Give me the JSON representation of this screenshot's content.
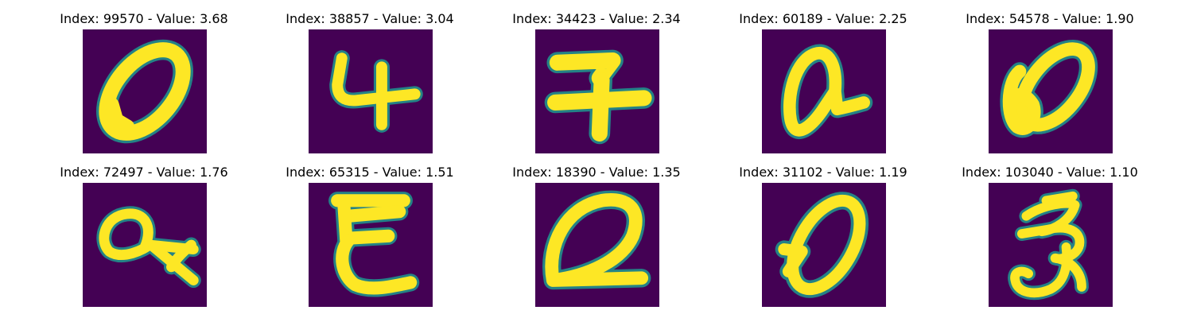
{
  "colors": {
    "background": "#440154",
    "mid": "#21918c",
    "stroke": "#fde725"
  },
  "tiles": [
    {
      "index_label": "Index: 99570 - Value: 3.68",
      "index": 99570,
      "value": 3.68,
      "glyph": "0"
    },
    {
      "index_label": "Index: 38857 - Value: 3.04",
      "index": 38857,
      "value": 3.04,
      "glyph": "4"
    },
    {
      "index_label": "Index: 34423 - Value: 2.34",
      "index": 34423,
      "value": 2.34,
      "glyph": "7"
    },
    {
      "index_label": "Index: 60189 - Value: 2.25",
      "index": 60189,
      "value": 2.25,
      "glyph": "a"
    },
    {
      "index_label": "Index: 54578 - Value: 1.90",
      "index": 54578,
      "value": 1.9,
      "glyph": "0"
    },
    {
      "index_label": "Index: 72497 - Value: 1.76",
      "index": 72497,
      "value": 1.76,
      "glyph": "a"
    },
    {
      "index_label": "Index: 65315 - Value: 1.51",
      "index": 65315,
      "value": 1.51,
      "glyph": "E"
    },
    {
      "index_label": "Index: 18390 - Value: 1.35",
      "index": 18390,
      "value": 1.35,
      "glyph": "0"
    },
    {
      "index_label": "Index: 31102 - Value: 1.19",
      "index": 31102,
      "value": 1.19,
      "glyph": "0"
    },
    {
      "index_label": "Index: 103040 - Value: 1.10",
      "index": 103040,
      "value": 1.1,
      "glyph": "3"
    }
  ]
}
